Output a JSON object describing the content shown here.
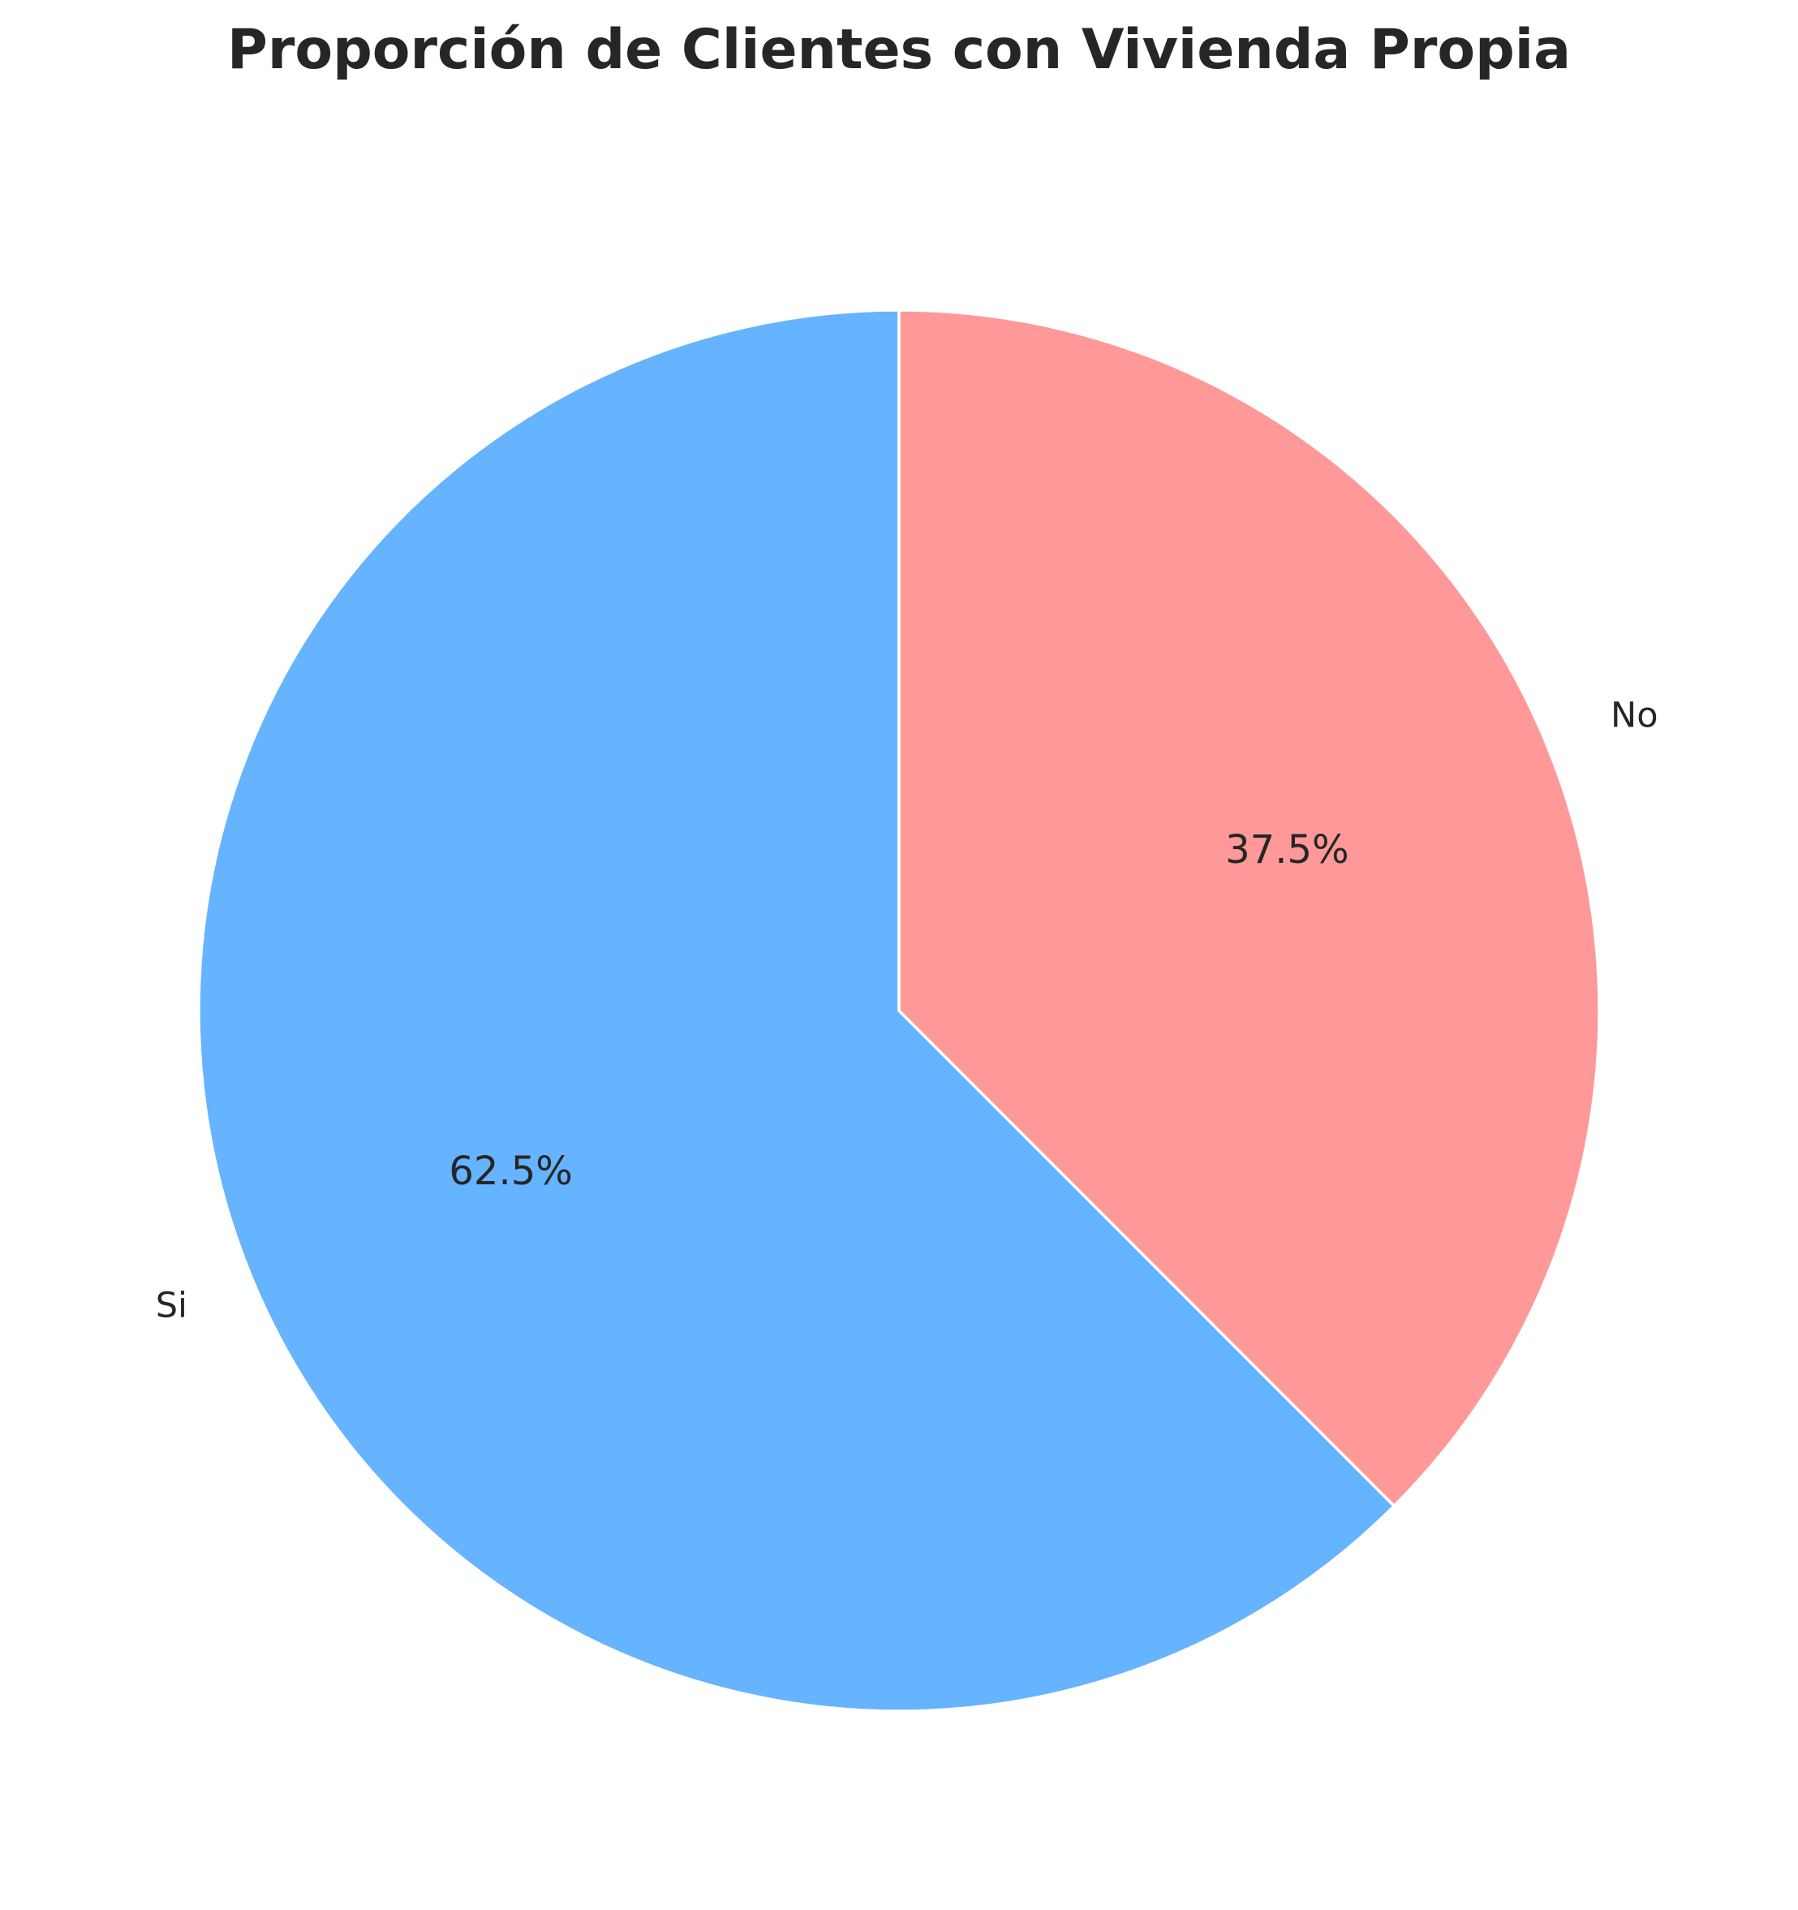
{
  "chart_data": {
    "type": "pie",
    "title": "Proporción de Clientes con Vivienda Propia",
    "slices": [
      {
        "label": "Si",
        "value": 62.5,
        "pct_label": "62.5%",
        "color": "#66b3ff"
      },
      {
        "label": "No",
        "value": 37.5,
        "pct_label": "37.5%",
        "color": "#ff9999"
      }
    ],
    "start_angle_deg": 90,
    "direction": "counterclockwise",
    "edge_color": "#ffffff"
  }
}
